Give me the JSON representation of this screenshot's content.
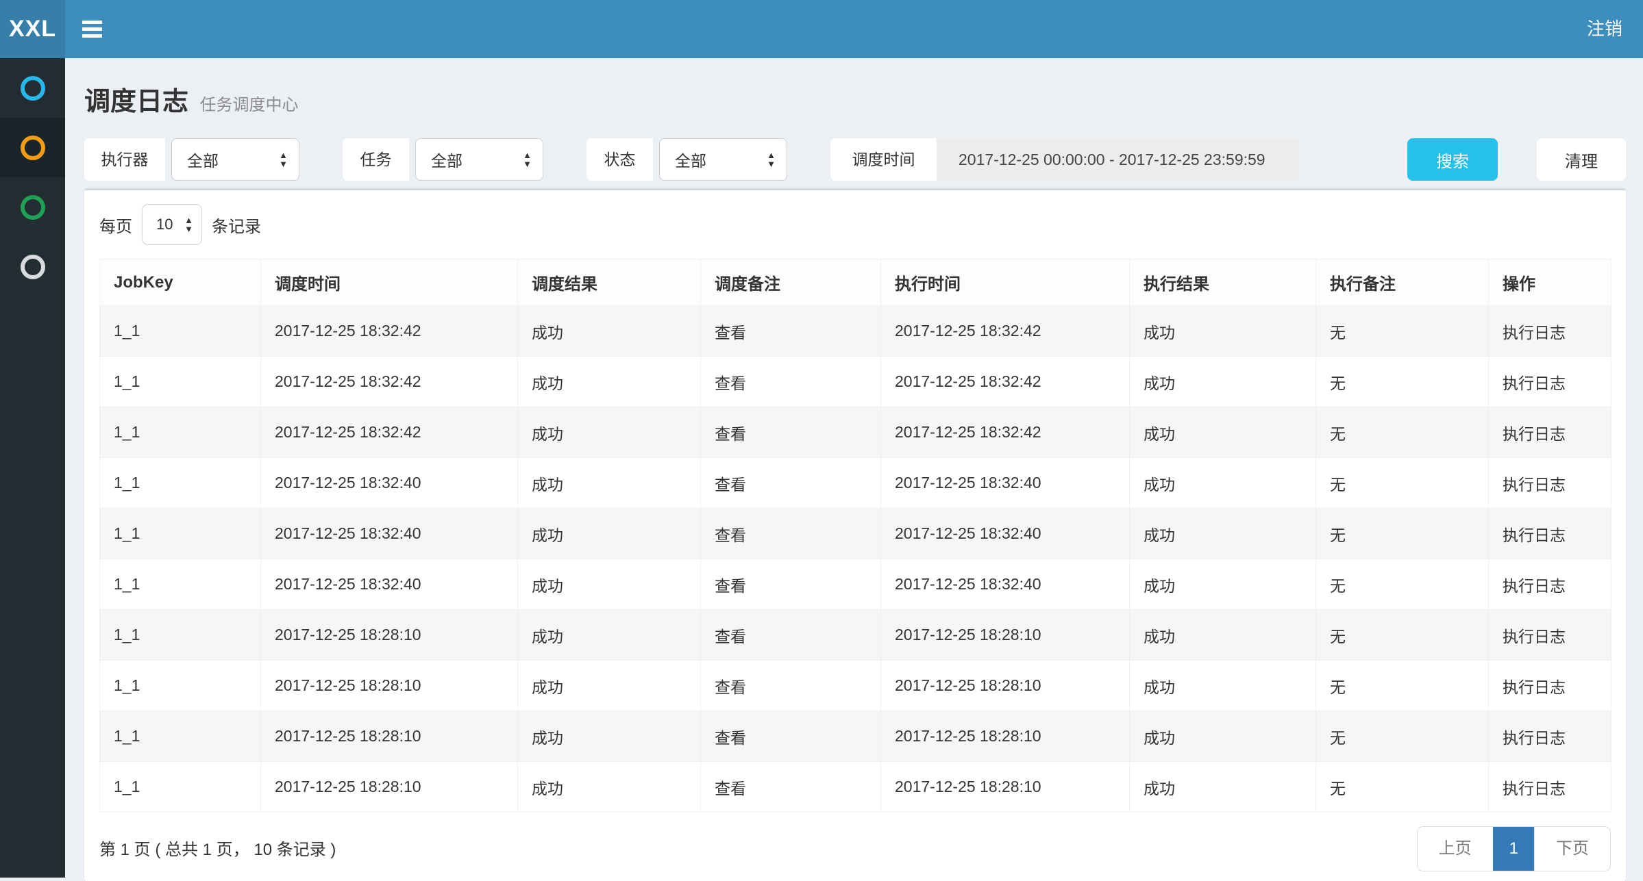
{
  "navbar": {
    "logo": "XXL",
    "logout": "注销"
  },
  "sidebar": {
    "items": [
      {
        "id": "menu-dashboard",
        "color": "#29b6e8",
        "active": false
      },
      {
        "id": "menu-job-manage",
        "color": "#f39c12",
        "active": true
      },
      {
        "id": "menu-job-log",
        "color": "#1fa054",
        "active": false
      },
      {
        "id": "menu-executor-manage",
        "color": "#d7dbe0",
        "active": false
      }
    ]
  },
  "header": {
    "title": "调度日志",
    "subtitle": "任务调度中心"
  },
  "filters": {
    "executor": {
      "label": "执行器",
      "value": "全部"
    },
    "job": {
      "label": "任务",
      "value": "全部"
    },
    "status": {
      "label": "状态",
      "value": "全部"
    },
    "time": {
      "label": "调度时间",
      "value": "2017-12-25 00:00:00 - 2017-12-25 23:59:59"
    },
    "search_label": "搜索",
    "clear_label": "清理"
  },
  "page_size": {
    "prefix": "每页",
    "value": "10",
    "suffix": "条记录"
  },
  "table": {
    "columns": [
      "JobKey",
      "调度时间",
      "调度结果",
      "调度备注",
      "执行时间",
      "执行结果",
      "执行备注",
      "操作"
    ],
    "rows": [
      {
        "jobkey": "1_1",
        "trigger_time": "2017-12-25 18:32:42",
        "trigger_result": "成功",
        "trigger_msg": "查看",
        "handle_time": "2017-12-25 18:32:42",
        "handle_result": "成功",
        "handle_msg": "无",
        "action": "执行日志"
      },
      {
        "jobkey": "1_1",
        "trigger_time": "2017-12-25 18:32:42",
        "trigger_result": "成功",
        "trigger_msg": "查看",
        "handle_time": "2017-12-25 18:32:42",
        "handle_result": "成功",
        "handle_msg": "无",
        "action": "执行日志"
      },
      {
        "jobkey": "1_1",
        "trigger_time": "2017-12-25 18:32:42",
        "trigger_result": "成功",
        "trigger_msg": "查看",
        "handle_time": "2017-12-25 18:32:42",
        "handle_result": "成功",
        "handle_msg": "无",
        "action": "执行日志"
      },
      {
        "jobkey": "1_1",
        "trigger_time": "2017-12-25 18:32:40",
        "trigger_result": "成功",
        "trigger_msg": "查看",
        "handle_time": "2017-12-25 18:32:40",
        "handle_result": "成功",
        "handle_msg": "无",
        "action": "执行日志"
      },
      {
        "jobkey": "1_1",
        "trigger_time": "2017-12-25 18:32:40",
        "trigger_result": "成功",
        "trigger_msg": "查看",
        "handle_time": "2017-12-25 18:32:40",
        "handle_result": "成功",
        "handle_msg": "无",
        "action": "执行日志"
      },
      {
        "jobkey": "1_1",
        "trigger_time": "2017-12-25 18:32:40",
        "trigger_result": "成功",
        "trigger_msg": "查看",
        "handle_time": "2017-12-25 18:32:40",
        "handle_result": "成功",
        "handle_msg": "无",
        "action": "执行日志"
      },
      {
        "jobkey": "1_1",
        "trigger_time": "2017-12-25 18:28:10",
        "trigger_result": "成功",
        "trigger_msg": "查看",
        "handle_time": "2017-12-25 18:28:10",
        "handle_result": "成功",
        "handle_msg": "无",
        "action": "执行日志"
      },
      {
        "jobkey": "1_1",
        "trigger_time": "2017-12-25 18:28:10",
        "trigger_result": "成功",
        "trigger_msg": "查看",
        "handle_time": "2017-12-25 18:28:10",
        "handle_result": "成功",
        "handle_msg": "无",
        "action": "执行日志"
      },
      {
        "jobkey": "1_1",
        "trigger_time": "2017-12-25 18:28:10",
        "trigger_result": "成功",
        "trigger_msg": "查看",
        "handle_time": "2017-12-25 18:28:10",
        "handle_result": "成功",
        "handle_msg": "无",
        "action": "执行日志"
      },
      {
        "jobkey": "1_1",
        "trigger_time": "2017-12-25 18:28:10",
        "trigger_result": "成功",
        "trigger_msg": "查看",
        "handle_time": "2017-12-25 18:28:10",
        "handle_result": "成功",
        "handle_msg": "无",
        "action": "执行日志"
      }
    ]
  },
  "pagination": {
    "summary": "第 1 页 ( 总共 1 页， 10 条记录 )",
    "prev": "上页",
    "current": "1",
    "next": "下页"
  },
  "colors": {
    "navbar": "#3d8ebc",
    "logo_bg": "#367fa9",
    "sidebar_bg": "#222d32",
    "content_bg": "#ecf0f5",
    "link": "#4290bd",
    "success": "#18a02e",
    "search_button": "#25c1ea",
    "pagination_active": "#337ab7"
  }
}
